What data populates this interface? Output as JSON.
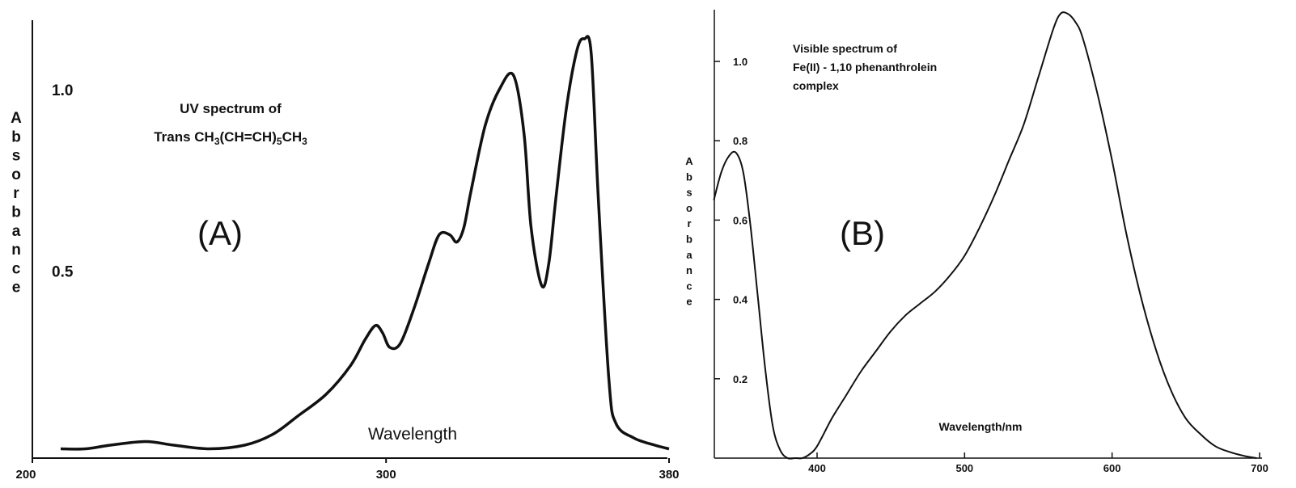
{
  "chart_data": [
    {
      "type": "line",
      "panel_label": "(A)",
      "title_lines": [
        "UV spectrum of"
      ],
      "formula": [
        {
          "t": "Trans CH",
          "sub": false
        },
        {
          "t": "3",
          "sub": true
        },
        {
          "t": "(CH=CH)",
          "sub": false
        },
        {
          "t": "5",
          "sub": true
        },
        {
          "t": "CH",
          "sub": false
        },
        {
          "t": "3",
          "sub": true
        }
      ],
      "xlabel": "Wavelength",
      "ylabel": "Absorbance",
      "xlim": [
        200,
        380
      ],
      "ylim": [
        0,
        1.1
      ],
      "x_ticks": [
        "200",
        "300",
        "380"
      ],
      "x_tick_values": [
        200,
        300,
        380
      ],
      "y_ticks": [
        "0.5",
        "1.0"
      ],
      "y_tick_values": [
        0.5,
        1.0
      ],
      "series": [
        {
          "x": [
            208,
            215,
            222,
            232,
            240,
            250,
            260,
            268,
            275,
            283,
            290,
            294,
            297,
            299,
            301,
            304,
            308,
            312,
            315,
            318,
            320,
            322,
            324,
            328,
            332,
            336,
            339,
            341,
            344,
            346,
            348,
            351,
            354,
            356,
            358,
            360,
            363,
            365,
            370,
            376,
            380
          ],
          "y": [
            0.01,
            0.01,
            0.02,
            0.03,
            0.02,
            0.01,
            0.02,
            0.05,
            0.1,
            0.16,
            0.24,
            0.31,
            0.35,
            0.33,
            0.29,
            0.3,
            0.4,
            0.52,
            0.6,
            0.6,
            0.58,
            0.62,
            0.72,
            0.9,
            1.0,
            1.04,
            0.88,
            0.62,
            0.46,
            0.52,
            0.7,
            0.95,
            1.11,
            1.14,
            1.1,
            0.7,
            0.2,
            0.08,
            0.04,
            0.02,
            0.01
          ]
        }
      ]
    },
    {
      "type": "line",
      "panel_label": "(B)",
      "title_lines": [
        "Visible spectrum of",
        "Fe(II) - 1,10 phenanthrolein",
        "complex"
      ],
      "xlabel": "Wavelength/nm",
      "ylabel": "Absorbance",
      "xlim": [
        330,
        700
      ],
      "ylim": [
        0,
        1.13
      ],
      "x_ticks": [
        "400",
        "500",
        "600",
        "700"
      ],
      "x_tick_values": [
        400,
        500,
        600,
        700
      ],
      "y_ticks": [
        "0.2",
        "0.4",
        "0.6",
        "0.8",
        "1.0"
      ],
      "y_tick_values": [
        0.2,
        0.4,
        0.6,
        0.8,
        1.0
      ],
      "series": [
        {
          "x": [
            330,
            335,
            340,
            345,
            350,
            355,
            360,
            365,
            370,
            375,
            380,
            385,
            390,
            395,
            400,
            410,
            420,
            430,
            440,
            450,
            460,
            470,
            480,
            490,
            500,
            510,
            520,
            530,
            540,
            550,
            560,
            565,
            570,
            575,
            580,
            590,
            600,
            610,
            620,
            630,
            640,
            650,
            660,
            670,
            680,
            690,
            698
          ],
          "y": [
            0.65,
            0.72,
            0.76,
            0.77,
            0.72,
            0.58,
            0.4,
            0.22,
            0.08,
            0.02,
            0.0,
            0.0,
            0.0,
            0.01,
            0.03,
            0.1,
            0.16,
            0.22,
            0.27,
            0.32,
            0.36,
            0.39,
            0.42,
            0.46,
            0.51,
            0.58,
            0.66,
            0.75,
            0.84,
            0.96,
            1.08,
            1.12,
            1.12,
            1.1,
            1.06,
            0.92,
            0.75,
            0.56,
            0.4,
            0.27,
            0.17,
            0.1,
            0.06,
            0.03,
            0.015,
            0.005,
            0.0
          ]
        }
      ]
    }
  ]
}
